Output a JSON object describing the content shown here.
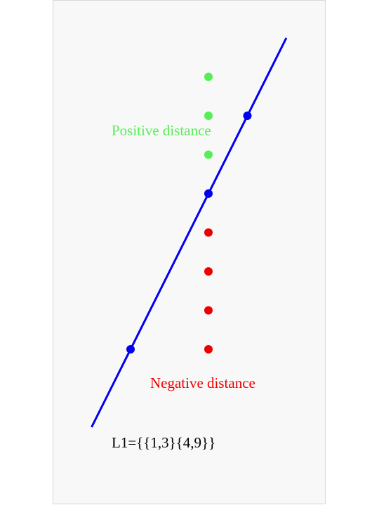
{
  "diagram": {
    "line_label": "L1={{1,3}{4,9}}",
    "positive_label": "Positive distance",
    "negative_label": "Negative distance",
    "colors": {
      "line": "#0000ee",
      "positive": "#55ee55",
      "negative": "#ee0000",
      "text": "#000000",
      "panel_background": "#f8f8f8"
    },
    "line_points": [
      {
        "name": "point-1-3",
        "x": 1,
        "y": 3
      },
      {
        "name": "point-3-7",
        "x": 3,
        "y": 7
      },
      {
        "name": "point-4-9",
        "x": 4,
        "y": 9
      }
    ],
    "positive_points": [
      {
        "x": 3,
        "y": 8
      },
      {
        "x": 3,
        "y": 9
      },
      {
        "x": 3,
        "y": 10
      }
    ],
    "negative_points": [
      {
        "x": 3,
        "y": 3
      },
      {
        "x": 3,
        "y": 4
      },
      {
        "x": 3,
        "y": 5
      },
      {
        "x": 3,
        "y": 6
      }
    ]
  }
}
